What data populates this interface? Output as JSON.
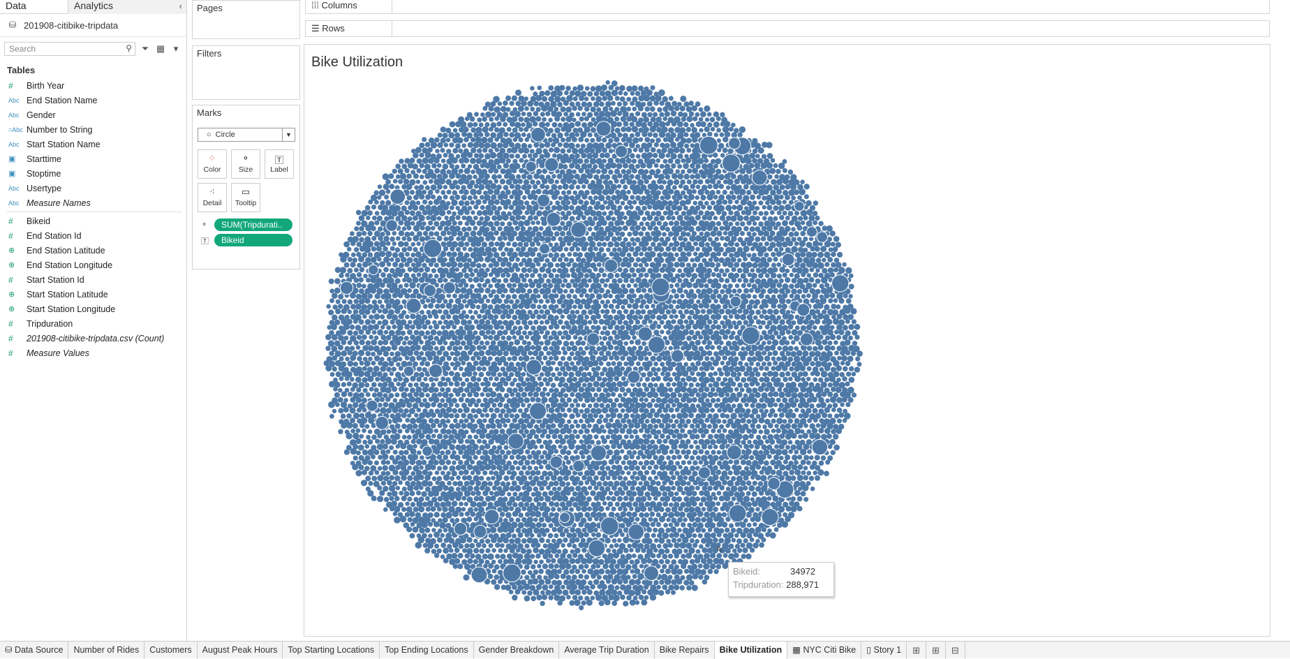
{
  "sidebar": {
    "tab_data": "Data",
    "tab_analytics": "Analytics",
    "datasource": "201908-citibike-tripdata",
    "search_placeholder": "Search",
    "tables_header": "Tables",
    "dimensions": [
      {
        "type": "num",
        "label": "Birth Year"
      },
      {
        "type": "abc",
        "label": "End Station Name"
      },
      {
        "type": "abc",
        "label": "Gender"
      },
      {
        "type": "calc",
        "label": "Number to String"
      },
      {
        "type": "abc",
        "label": "Start Station Name"
      },
      {
        "type": "date",
        "label": "Starttime"
      },
      {
        "type": "date",
        "label": "Stoptime"
      },
      {
        "type": "abc",
        "label": "Usertype"
      },
      {
        "type": "abc",
        "label": "Measure Names",
        "italic": true
      }
    ],
    "measures": [
      {
        "type": "num",
        "label": "Bikeid"
      },
      {
        "type": "num",
        "label": "End Station Id"
      },
      {
        "type": "geo",
        "label": "End Station Latitude"
      },
      {
        "type": "geo",
        "label": "End Station Longitude"
      },
      {
        "type": "num",
        "label": "Start Station Id"
      },
      {
        "type": "geo",
        "label": "Start Station Latitude"
      },
      {
        "type": "geo",
        "label": "Start Station Longitude"
      },
      {
        "type": "num",
        "label": "Tripduration"
      },
      {
        "type": "num",
        "label": "201908-citibike-tripdata.csv (Count)",
        "italic": true
      },
      {
        "type": "num",
        "label": "Measure Values",
        "italic": true
      }
    ]
  },
  "cards": {
    "pages": "Pages",
    "filters": "Filters",
    "marks": "Marks",
    "mark_type": "Circle",
    "buttons": {
      "color": "Color",
      "size": "Size",
      "label": "Label",
      "detail": "Detail",
      "tooltip": "Tooltip"
    },
    "pills": [
      "SUM(Tripdurati..",
      "Bikeid"
    ]
  },
  "shelves": {
    "columns": "Columns",
    "rows": "Rows"
  },
  "viz": {
    "title": "Bike Utilization",
    "mark_color": "#4e79a7",
    "tooltip": {
      "k1": "Bikeid:",
      "v1": "34972",
      "k2": "Tripduration:",
      "v2": "288,971"
    }
  },
  "sheet_tabs": [
    "Data Source",
    "Number of Rides",
    "Customers",
    "August Peak Hours",
    "Top Starting Locations",
    "Top Ending Locations",
    "Gender Breakdown",
    "Average Trip Duration",
    "Bike Repairs",
    "Bike Utilization",
    "NYC Citi Bike",
    "Story 1"
  ],
  "active_sheet": "Bike Utilization"
}
